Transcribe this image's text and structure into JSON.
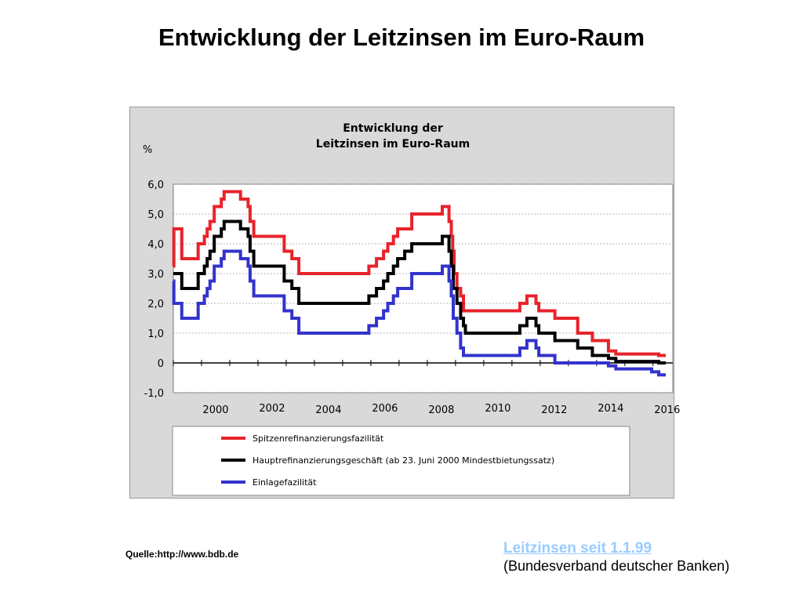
{
  "page": {
    "title": "Entwicklung der Leitzinsen im Euro-Raum",
    "source": "Quelle:http://www.bdb.de",
    "link_label": "Leitzinsen seit 1.1.99",
    "publisher": "(Bundesverband deutscher Banken)"
  },
  "chart_data": {
    "type": "line",
    "title": "Entwicklung der Leitzinsen im Euro-Raum",
    "title_lines": [
      "Entwicklung der",
      "Leitzinsen im Euro-Raum"
    ],
    "ylabel": "%",
    "xlabel": "",
    "xlim": [
      1999.0,
      2016.7
    ],
    "ylim": [
      -1.0,
      6.0
    ],
    "x_ticks": [
      "2000",
      "2002",
      "2004",
      "2006",
      "2008",
      "2010",
      "2012",
      "2014",
      "2016"
    ],
    "y_ticks": [
      "6,0",
      "5,0",
      "4,0",
      "3,0",
      "2,0",
      "1,0",
      "0",
      "-1,0"
    ],
    "grid": true,
    "legend_position": "bottom",
    "step": true,
    "series": [
      {
        "name": "Spitzenrefinanzierungsfazilität",
        "color": "#e8232a",
        "points": [
          [
            1999.0,
            3.25
          ],
          [
            1999.02,
            4.5
          ],
          [
            1999.3,
            3.5
          ],
          [
            1999.88,
            4.0
          ],
          [
            2000.1,
            4.25
          ],
          [
            2000.2,
            4.5
          ],
          [
            2000.3,
            4.75
          ],
          [
            2000.45,
            5.25
          ],
          [
            2000.7,
            5.5
          ],
          [
            2000.8,
            5.75
          ],
          [
            2001.38,
            5.5
          ],
          [
            2001.65,
            5.25
          ],
          [
            2001.72,
            4.75
          ],
          [
            2001.85,
            4.25
          ],
          [
            2002.93,
            3.75
          ],
          [
            2003.2,
            3.5
          ],
          [
            2003.45,
            3.0
          ],
          [
            2005.93,
            3.25
          ],
          [
            2006.2,
            3.5
          ],
          [
            2006.45,
            3.75
          ],
          [
            2006.6,
            4.0
          ],
          [
            2006.8,
            4.25
          ],
          [
            2006.95,
            4.5
          ],
          [
            2007.45,
            5.0
          ],
          [
            2008.53,
            5.25
          ],
          [
            2008.77,
            4.75
          ],
          [
            2008.85,
            4.25
          ],
          [
            2008.9,
            3.75
          ],
          [
            2008.95,
            3.0
          ],
          [
            2009.05,
            2.5
          ],
          [
            2009.18,
            2.25
          ],
          [
            2009.28,
            1.75
          ],
          [
            2011.28,
            2.0
          ],
          [
            2011.53,
            2.25
          ],
          [
            2011.85,
            2.0
          ],
          [
            2011.95,
            1.75
          ],
          [
            2012.52,
            1.5
          ],
          [
            2013.33,
            1.0
          ],
          [
            2013.85,
            0.75
          ],
          [
            2014.42,
            0.4
          ],
          [
            2014.68,
            0.3
          ],
          [
            2015.95,
            0.3
          ],
          [
            2016.2,
            0.25
          ],
          [
            2016.45,
            0.25
          ]
        ]
      },
      {
        "name": "Hauptrefinanzierungsgeschäft (ab 23. Juni 2000 Mindestbietungssatz)",
        "color": "#000000",
        "points": [
          [
            1999.0,
            3.0
          ],
          [
            1999.3,
            2.5
          ],
          [
            1999.88,
            3.0
          ],
          [
            2000.1,
            3.25
          ],
          [
            2000.2,
            3.5
          ],
          [
            2000.3,
            3.75
          ],
          [
            2000.45,
            4.25
          ],
          [
            2000.7,
            4.5
          ],
          [
            2000.8,
            4.75
          ],
          [
            2001.38,
            4.5
          ],
          [
            2001.65,
            4.25
          ],
          [
            2001.72,
            3.75
          ],
          [
            2001.85,
            3.25
          ],
          [
            2002.93,
            2.75
          ],
          [
            2003.2,
            2.5
          ],
          [
            2003.45,
            2.0
          ],
          [
            2005.93,
            2.25
          ],
          [
            2006.2,
            2.5
          ],
          [
            2006.45,
            2.75
          ],
          [
            2006.6,
            3.0
          ],
          [
            2006.8,
            3.25
          ],
          [
            2006.95,
            3.5
          ],
          [
            2007.2,
            3.75
          ],
          [
            2007.45,
            4.0
          ],
          [
            2008.53,
            4.25
          ],
          [
            2008.77,
            3.75
          ],
          [
            2008.85,
            3.25
          ],
          [
            2008.92,
            2.5
          ],
          [
            2009.05,
            2.0
          ],
          [
            2009.18,
            1.5
          ],
          [
            2009.28,
            1.25
          ],
          [
            2009.35,
            1.0
          ],
          [
            2011.28,
            1.25
          ],
          [
            2011.53,
            1.5
          ],
          [
            2011.85,
            1.25
          ],
          [
            2011.95,
            1.0
          ],
          [
            2012.52,
            0.75
          ],
          [
            2013.33,
            0.5
          ],
          [
            2013.85,
            0.25
          ],
          [
            2014.42,
            0.15
          ],
          [
            2014.68,
            0.05
          ],
          [
            2016.2,
            0.0
          ],
          [
            2016.45,
            0.0
          ]
        ]
      },
      {
        "name": "Einlagefazilität",
        "color": "#3333cc",
        "points": [
          [
            1999.0,
            2.75
          ],
          [
            1999.02,
            2.0
          ],
          [
            1999.3,
            1.5
          ],
          [
            1999.88,
            2.0
          ],
          [
            2000.1,
            2.25
          ],
          [
            2000.2,
            2.5
          ],
          [
            2000.3,
            2.75
          ],
          [
            2000.45,
            3.25
          ],
          [
            2000.7,
            3.5
          ],
          [
            2000.8,
            3.75
          ],
          [
            2001.38,
            3.5
          ],
          [
            2001.65,
            3.25
          ],
          [
            2001.72,
            2.75
          ],
          [
            2001.85,
            2.25
          ],
          [
            2002.93,
            1.75
          ],
          [
            2003.2,
            1.5
          ],
          [
            2003.45,
            1.0
          ],
          [
            2005.93,
            1.25
          ],
          [
            2006.2,
            1.5
          ],
          [
            2006.45,
            1.75
          ],
          [
            2006.6,
            2.0
          ],
          [
            2006.8,
            2.25
          ],
          [
            2006.95,
            2.5
          ],
          [
            2007.45,
            3.0
          ],
          [
            2008.53,
            3.25
          ],
          [
            2008.77,
            2.75
          ],
          [
            2008.85,
            2.25
          ],
          [
            2008.92,
            1.5
          ],
          [
            2009.05,
            1.0
          ],
          [
            2009.18,
            0.5
          ],
          [
            2009.28,
            0.25
          ],
          [
            2011.28,
            0.5
          ],
          [
            2011.53,
            0.75
          ],
          [
            2011.85,
            0.5
          ],
          [
            2011.95,
            0.25
          ],
          [
            2012.52,
            0.0
          ],
          [
            2014.42,
            -0.1
          ],
          [
            2014.68,
            -0.2
          ],
          [
            2015.95,
            -0.3
          ],
          [
            2016.2,
            -0.4
          ],
          [
            2016.45,
            -0.4
          ]
        ]
      }
    ]
  }
}
